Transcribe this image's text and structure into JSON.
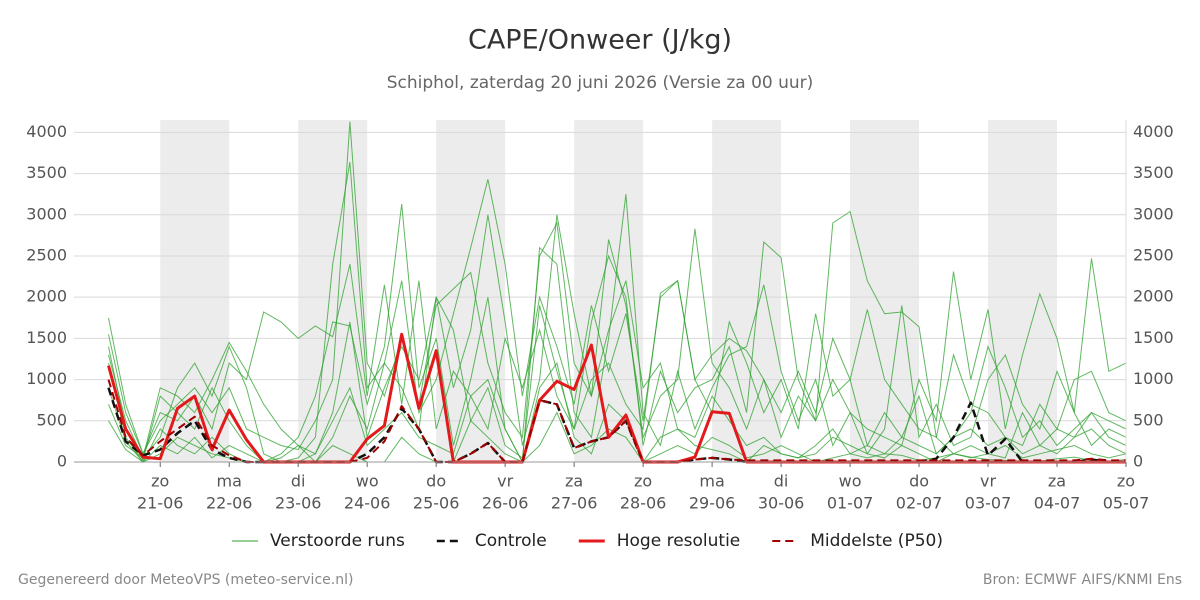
{
  "chart_data": {
    "type": "line",
    "title": "CAPE/Onweer (J/kg)",
    "subtitle": "Schiphol, zaterdag 20 juni 2026 (Versie za 00 uur)",
    "x": [
      0.25,
      0.5,
      0.75,
      1,
      1.25,
      1.5,
      1.75,
      2,
      2.25,
      2.5,
      2.75,
      3,
      3.25,
      3.5,
      3.75,
      4,
      4.25,
      4.5,
      4.75,
      5,
      5.25,
      5.5,
      5.75,
      6,
      6.25,
      6.5,
      6.75,
      7,
      7.25,
      7.5,
      7.75,
      8,
      8.25,
      8.5,
      8.75,
      9,
      9.25,
      9.5,
      9.75,
      10,
      10.25,
      10.5,
      10.75,
      11,
      11.25,
      11.5,
      11.75,
      12,
      12.25,
      12.5,
      12.75,
      13,
      13.25,
      13.5,
      13.75,
      14,
      14.25,
      14.5,
      14.75,
      15
    ],
    "xlim": [
      -0.25,
      15
    ],
    "xticks": [
      {
        "value": 1,
        "weekday": "zo",
        "label": "21-06"
      },
      {
        "value": 2,
        "weekday": "ma",
        "label": "22-06"
      },
      {
        "value": 3,
        "weekday": "di",
        "label": "23-06"
      },
      {
        "value": 4,
        "weekday": "wo",
        "label": "24-06"
      },
      {
        "value": 5,
        "weekday": "do",
        "label": "25-06"
      },
      {
        "value": 6,
        "weekday": "vr",
        "label": "26-06"
      },
      {
        "value": 7,
        "weekday": "za",
        "label": "27-06"
      },
      {
        "value": 8,
        "weekday": "zo",
        "label": "28-06"
      },
      {
        "value": 9,
        "weekday": "ma",
        "label": "29-06"
      },
      {
        "value": 10,
        "weekday": "di",
        "label": "30-06"
      },
      {
        "value": 11,
        "weekday": "wo",
        "label": "01-07"
      },
      {
        "value": 12,
        "weekday": "do",
        "label": "02-07"
      },
      {
        "value": 13,
        "weekday": "vr",
        "label": "03-07"
      },
      {
        "value": 14,
        "weekday": "za",
        "label": "04-07"
      },
      {
        "value": 15,
        "weekday": "zo",
        "label": "05-07"
      }
    ],
    "ylim": [
      0,
      4150
    ],
    "yticks": [
      0,
      500,
      1000,
      1500,
      2000,
      2500,
      3000,
      3500,
      4000
    ],
    "grid": true,
    "ensemble": {
      "name": "Verstoorde runs",
      "color": "#2ca02c",
      "members": [
        [
          1550,
          600,
          100,
          500,
          700,
          900,
          600,
          900,
          400,
          300,
          200,
          150,
          500,
          1000,
          4130,
          1200,
          800,
          1500,
          700,
          1900,
          2100,
          2300,
          1200,
          600,
          300,
          2500,
          2900,
          1200,
          800,
          1600,
          2200,
          900,
          1200,
          400,
          300,
          800,
          500,
          200,
          300,
          100,
          50,
          200,
          400,
          100,
          50,
          100,
          80,
          20,
          50,
          100,
          60,
          30,
          20,
          0,
          10,
          40,
          60,
          20,
          10,
          30
        ],
        [
          1300,
          500,
          50,
          300,
          900,
          1200,
          800,
          1400,
          900,
          100,
          0,
          50,
          300,
          2400,
          3640,
          900,
          1200,
          2200,
          600,
          1000,
          1800,
          2600,
          3430,
          2400,
          800,
          2000,
          1400,
          700,
          1900,
          1100,
          1800,
          500,
          2000,
          2200,
          1000,
          600,
          1700,
          1200,
          600,
          1000,
          400,
          1800,
          800,
          1000,
          200,
          600,
          300,
          800,
          100,
          300,
          600,
          1400,
          900,
          300,
          500,
          200,
          400,
          600,
          300,
          200
        ],
        [
          1400,
          400,
          20,
          800,
          600,
          400,
          900,
          500,
          200,
          0,
          100,
          300,
          800,
          1700,
          1650,
          700,
          1400,
          3130,
          900,
          1500,
          200,
          1000,
          2000,
          400,
          0,
          2600,
          2400,
          600,
          300,
          1500,
          3250,
          600,
          200,
          1100,
          400,
          900,
          1300,
          1400,
          2150,
          1100,
          500,
          1000,
          200,
          600,
          100,
          400,
          1900,
          300,
          700,
          200,
          300,
          1000,
          1300,
          700,
          400,
          1100,
          600,
          200,
          400,
          300
        ],
        [
          1200,
          300,
          0,
          400,
          200,
          100,
          300,
          100,
          0,
          0,
          50,
          200,
          100,
          600,
          1700,
          300,
          900,
          1400,
          1000,
          2000,
          1600,
          500,
          900,
          200,
          50,
          1900,
          1100,
          400,
          1700,
          2500,
          2000,
          200,
          1100,
          600,
          900,
          1000,
          1400,
          600,
          2670,
          2480,
          1000,
          500,
          2900,
          3040,
          2200,
          1800,
          1820,
          1640,
          300,
          100,
          200,
          100,
          50,
          600,
          200,
          100,
          300,
          400,
          200,
          100
        ],
        [
          700,
          200,
          50,
          900,
          800,
          600,
          1000,
          1450,
          1100,
          700,
          400,
          200,
          0,
          300,
          800,
          400,
          1200,
          900,
          400,
          2000,
          900,
          1600,
          3000,
          1700,
          200,
          1000,
          3000,
          1800,
          800,
          2700,
          1900,
          300,
          800,
          1000,
          2830,
          1200,
          900,
          400,
          1000,
          300,
          800,
          500,
          1000,
          600,
          400,
          300,
          200,
          1000,
          500,
          2310,
          1000,
          1850,
          400,
          1300,
          2040,
          1500,
          600,
          2470,
          1100,
          1200
        ],
        [
          500,
          150,
          0,
          200,
          100,
          300,
          50,
          200,
          100,
          0,
          0,
          0,
          0,
          200,
          100,
          0,
          0,
          300,
          100,
          0,
          0,
          500,
          300,
          100,
          0,
          200,
          600,
          100,
          200,
          400,
          300,
          0,
          100,
          200,
          100,
          300,
          200,
          50,
          100,
          200,
          100,
          0,
          50,
          100,
          200,
          100,
          300,
          200,
          100,
          300,
          400,
          200,
          300,
          100,
          200,
          400,
          300,
          600,
          500,
          400
        ],
        [
          1750,
          700,
          100,
          600,
          500,
          800,
          400,
          1200,
          1000,
          1820,
          1700,
          1500,
          1650,
          1520,
          2400,
          800,
          2150,
          700,
          2200,
          400,
          1100,
          800,
          400,
          1500,
          900,
          1600,
          800,
          400,
          1000,
          1200,
          700,
          400,
          2050,
          2200,
          1000,
          1300,
          1500,
          1350,
          1000,
          600,
          1100,
          600,
          1500,
          1000,
          1850,
          1000,
          700,
          400,
          300,
          1300,
          700,
          600,
          300,
          200,
          700,
          400,
          1000,
          1100,
          600,
          500
        ],
        [
          900,
          250,
          0,
          100,
          300,
          200,
          100,
          50,
          0,
          0,
          0,
          0,
          100,
          500,
          900,
          200,
          400,
          600,
          300,
          200,
          100,
          800,
          1000,
          400,
          0,
          900,
          1200,
          300,
          100,
          700,
          500,
          0,
          300,
          400,
          200,
          150,
          100,
          0,
          200,
          100,
          50,
          100,
          300,
          200,
          100,
          50,
          200,
          100,
          0,
          100,
          50,
          100,
          200,
          50,
          100,
          150,
          200,
          100,
          50,
          100
        ]
      ]
    },
    "series": [
      {
        "name": "Controle",
        "color": "#111111",
        "dash": true,
        "width": 2.5,
        "values": [
          900,
          250,
          80,
          150,
          350,
          500,
          150,
          50,
          0,
          0,
          0,
          0,
          0,
          0,
          0,
          100,
          300,
          650,
          400,
          0,
          0,
          100,
          230,
          0,
          0,
          750,
          700,
          170,
          250,
          300,
          500,
          0,
          0,
          0,
          30,
          50,
          30,
          0,
          0,
          0,
          0,
          0,
          0,
          0,
          0,
          0,
          0,
          0,
          40,
          300,
          720,
          80,
          280,
          0,
          0,
          0,
          0,
          30,
          0,
          0
        ]
      },
      {
        "name": "Hoge resolutie",
        "color": "#e31a1c",
        "dash": false,
        "width": 3,
        "values": [
          1170,
          400,
          60,
          40,
          650,
          800,
          150,
          630,
          270,
          0,
          0,
          0,
          0,
          0,
          0,
          280,
          440,
          1550,
          650,
          1350,
          0,
          0,
          0,
          0,
          0,
          750,
          980,
          880,
          1420,
          300,
          570,
          0,
          0,
          0,
          60,
          610,
          590,
          0,
          0,
          0,
          0,
          0,
          0,
          0,
          0,
          0,
          0,
          0,
          0,
          0,
          0,
          0,
          0,
          0,
          0,
          0,
          0,
          0,
          0,
          0
        ]
      },
      {
        "name": "Middelste (P50)",
        "color": "#a00000",
        "dash": true,
        "width": 2,
        "values": [
          1000,
          300,
          80,
          250,
          400,
          550,
          200,
          80,
          0,
          0,
          0,
          0,
          0,
          0,
          0,
          50,
          250,
          680,
          400,
          0,
          0,
          100,
          230,
          0,
          0,
          750,
          700,
          170,
          250,
          300,
          500,
          0,
          0,
          0,
          30,
          50,
          30,
          20,
          20,
          20,
          20,
          20,
          20,
          20,
          20,
          20,
          20,
          20,
          20,
          20,
          20,
          20,
          20,
          20,
          20,
          20,
          20,
          40,
          20,
          20
        ]
      }
    ]
  },
  "footer": {
    "left": "Gegenereerd door MeteoVPS (meteo-service.nl)",
    "right": "Bron: ECMWF AIFS/KNMI Ens"
  }
}
